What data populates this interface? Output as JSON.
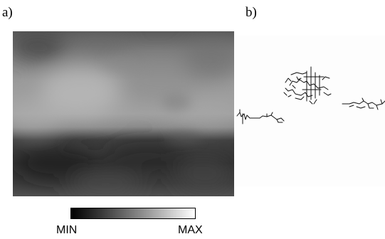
{
  "figure": {
    "panels": [
      {
        "label": "a)"
      },
      {
        "label": "b)"
      }
    ],
    "colorbar": {
      "min_label": "MIN",
      "max_label": "MAX"
    }
  }
}
